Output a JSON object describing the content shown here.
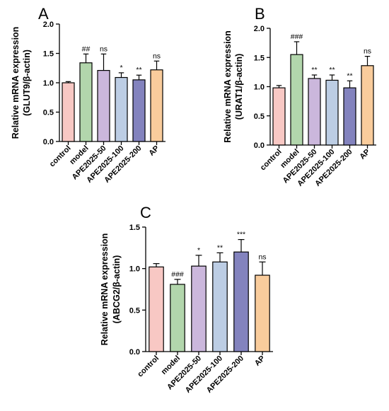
{
  "chart_data": [
    {
      "type": "bar",
      "panel_letter": "A",
      "ylabel_line1": "Relative mRNA expression",
      "ylabel_line2": "(GLUT9/β-actin)",
      "ylim": [
        0,
        2.0
      ],
      "yticks": [
        0.0,
        0.5,
        1.0,
        1.5,
        2.0
      ],
      "ytick_labels": [
        "0.0",
        "0.5",
        "1.0",
        "1.5",
        "2.0"
      ],
      "categories": [
        "control",
        "model",
        "APE2025-50",
        "APE2025-100",
        "APE2025-200",
        "AP"
      ],
      "values": [
        1.0,
        1.34,
        1.21,
        1.09,
        1.05,
        1.22
      ],
      "errors": [
        0.02,
        0.15,
        0.28,
        0.08,
        0.08,
        0.15
      ],
      "annotations": [
        "",
        "##",
        "ns",
        "*",
        "**",
        "ns"
      ],
      "colors": [
        "#f8c8c4",
        "#b2d6ac",
        "#cbb7dc",
        "#bccde4",
        "#8383be",
        "#f9cc9c"
      ]
    },
    {
      "type": "bar",
      "panel_letter": "B",
      "ylabel_line1": "Relative mRNA expression",
      "ylabel_line2": "(URAT1/β-actin)",
      "ylim": [
        0,
        2.0
      ],
      "yticks": [
        0.0,
        0.5,
        1.0,
        1.5,
        2.0
      ],
      "ytick_labels": [
        "0.0",
        "0.5",
        "1.0",
        "1.5",
        "2.0"
      ],
      "categories": [
        "control",
        "model",
        "APE2025-50",
        "APE2025-100",
        "APE2025-200",
        "AP"
      ],
      "values": [
        0.98,
        1.55,
        1.14,
        1.11,
        0.98,
        1.36
      ],
      "errors": [
        0.04,
        0.22,
        0.06,
        0.09,
        0.12,
        0.16
      ],
      "annotations": [
        "",
        "###",
        "**",
        "**",
        "**",
        "ns"
      ],
      "colors": [
        "#f8c8c4",
        "#b2d6ac",
        "#cbb7dc",
        "#bccde4",
        "#8383be",
        "#f9cc9c"
      ]
    },
    {
      "type": "bar",
      "panel_letter": "C",
      "ylabel_line1": "Relative mRNA expression",
      "ylabel_line2": "(ABCG2/β-actin)",
      "ylim": [
        0,
        1.5
      ],
      "yticks": [
        0.0,
        0.5,
        1.0,
        1.5
      ],
      "ytick_labels": [
        "0.0",
        "0.5",
        "1.0",
        "1.5"
      ],
      "categories": [
        "control",
        "model",
        "APE2025-50",
        "APE2025-100",
        "APE2025-200",
        "AP"
      ],
      "values": [
        1.02,
        0.81,
        1.03,
        1.08,
        1.2,
        0.92
      ],
      "errors": [
        0.04,
        0.06,
        0.13,
        0.11,
        0.15,
        0.16
      ],
      "annotations": [
        "",
        "###",
        "*",
        "**",
        "***",
        "ns"
      ],
      "colors": [
        "#f8c8c4",
        "#b2d6ac",
        "#cbb7dc",
        "#bccde4",
        "#8383be",
        "#f9cc9c"
      ]
    }
  ]
}
